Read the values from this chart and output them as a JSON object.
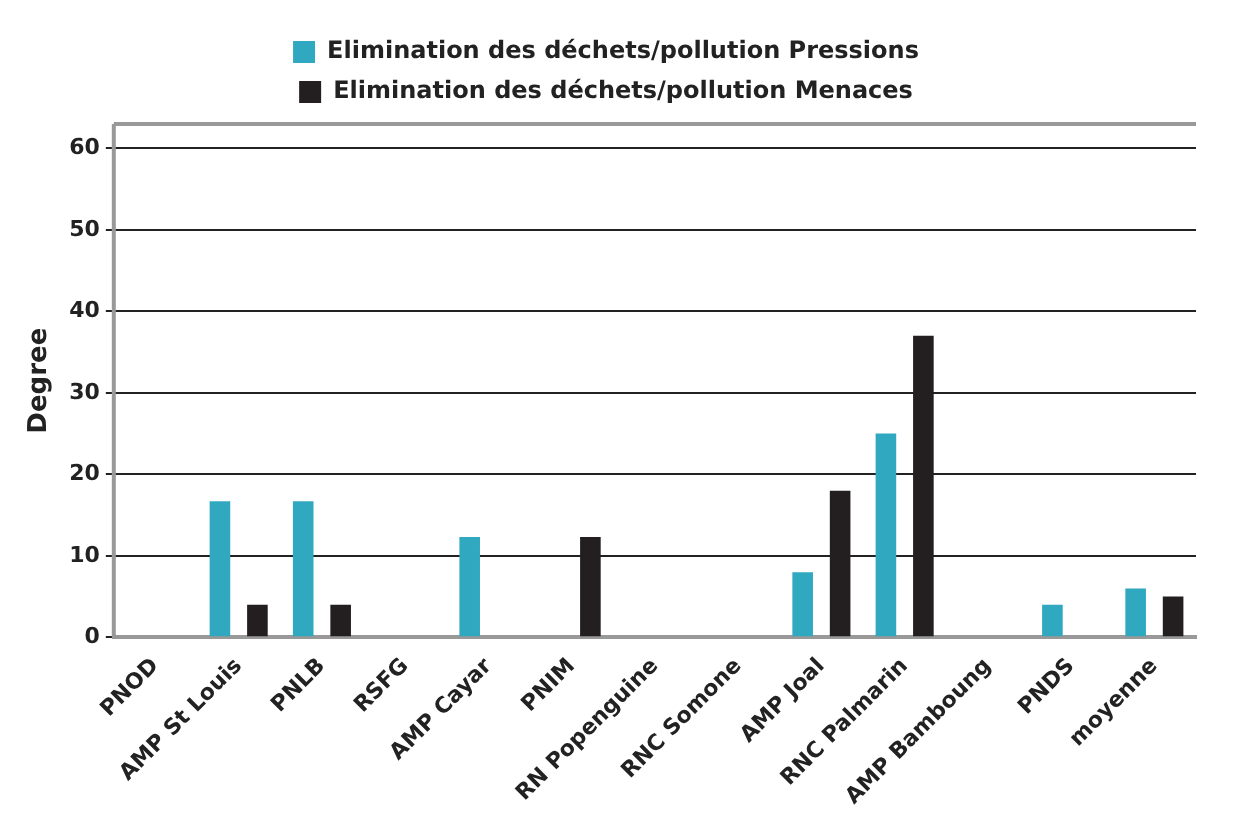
{
  "chart_data": {
    "type": "bar",
    "ylabel": "Degree",
    "categories": [
      "PNOD",
      "AMP St Louis",
      "PNLB",
      "RSFG",
      "AMP Cayar",
      "PNIM",
      "RN Popenguine",
      "RNC Somone",
      "AMP Joal",
      "RNC Palmarin",
      "AMP Bamboung",
      "PNDS",
      "moyenne"
    ],
    "series": [
      {
        "name": "Elimination des déchets/pollution Pressions",
        "color": "#2fa8c0",
        "values": [
          0,
          16.7,
          16.7,
          0,
          12.3,
          0,
          0,
          0,
          8,
          25,
          0,
          4,
          6
        ]
      },
      {
        "name": "Elimination des déchets/pollution Menaces",
        "color": "#231f20",
        "values": [
          0,
          4,
          4,
          0,
          0,
          12.3,
          0,
          0,
          18,
          37,
          0,
          0,
          5
        ]
      }
    ],
    "ylim": [
      0,
      63
    ],
    "yticks": [
      0,
      10,
      20,
      30,
      40,
      50,
      60
    ],
    "grid": "y",
    "legend": "top"
  }
}
